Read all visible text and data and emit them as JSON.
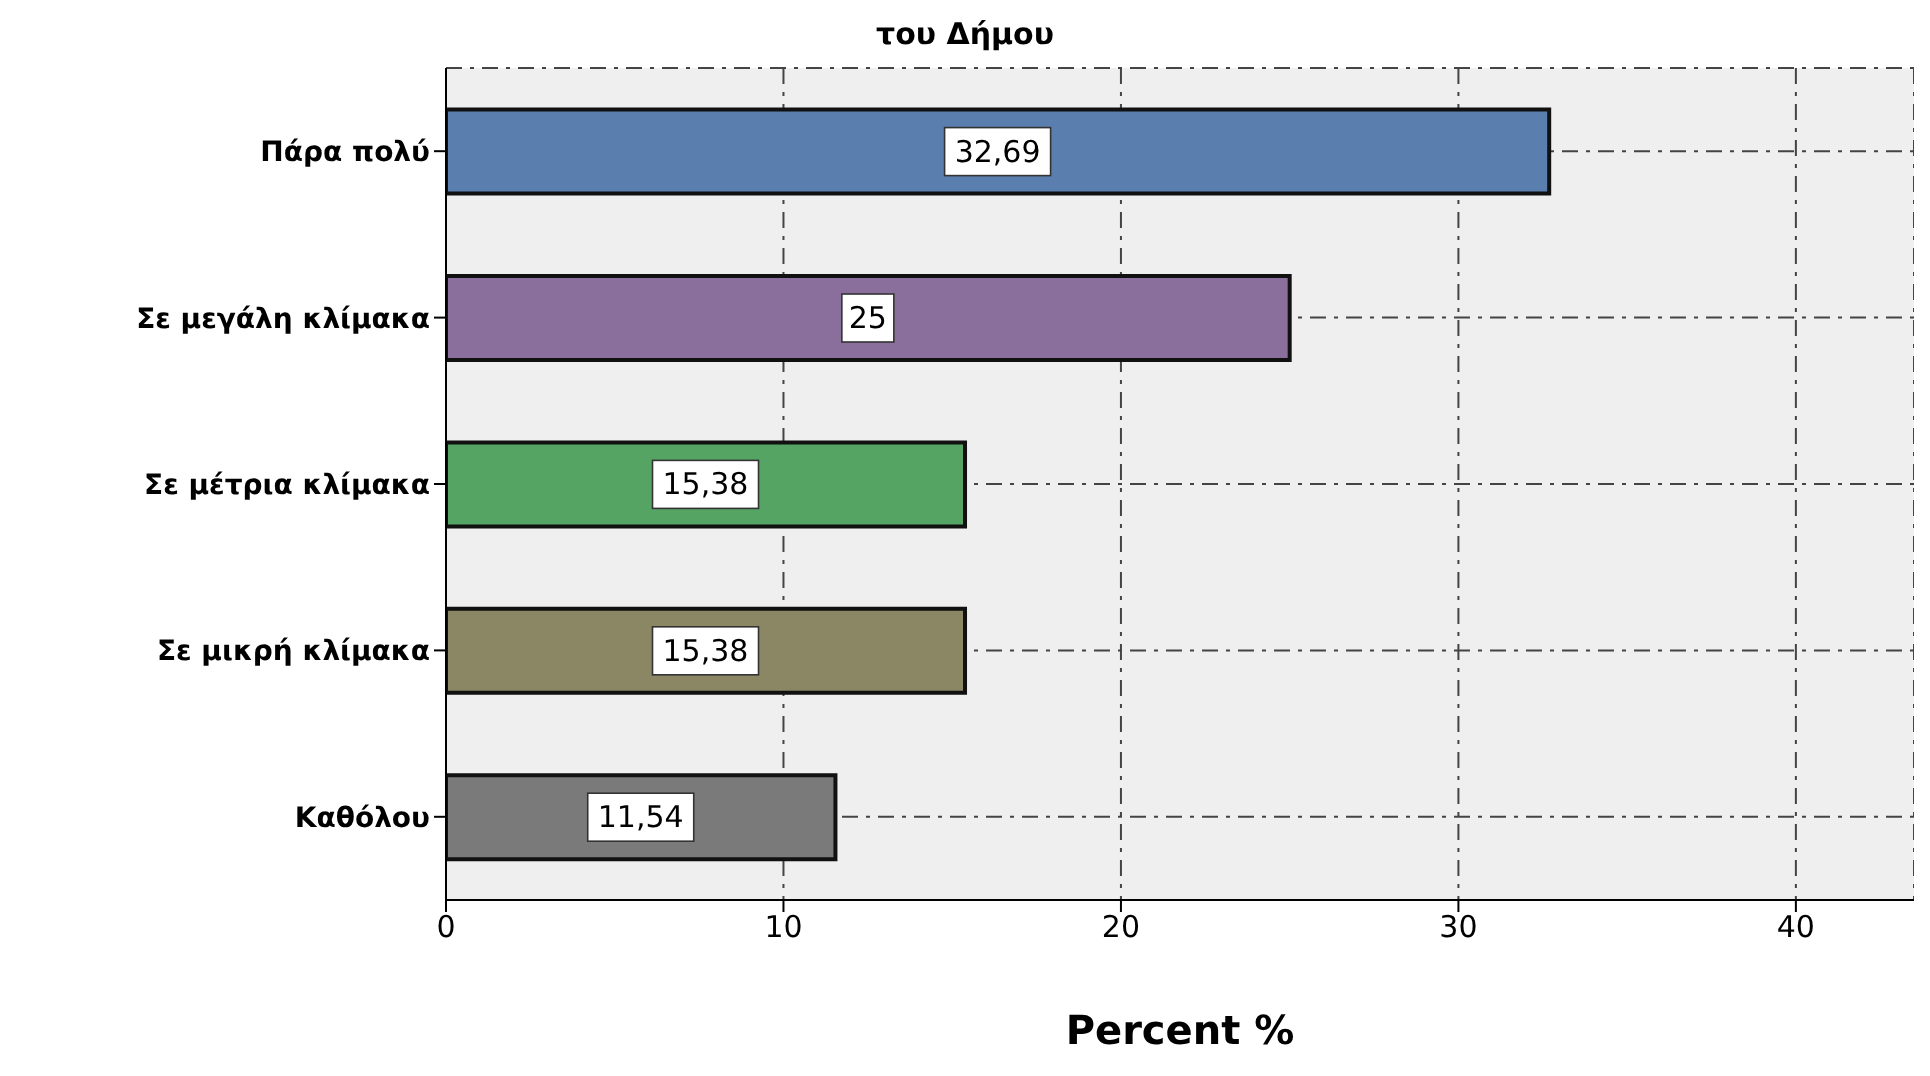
{
  "chart_data": {
    "type": "bar",
    "orientation": "horizontal",
    "title": "του Δήμου",
    "xlabel": "Percent %",
    "categories": [
      "Πάρα πολύ",
      "Σε μεγάλη κλίμακα",
      "Σε μέτρια κλίμακα",
      "Σε μικρή κλίμακα",
      "Καθόλου"
    ],
    "values": [
      32.69,
      25,
      15.38,
      15.38,
      11.54
    ],
    "colors": [
      "#5a7fae",
      "#8a6f9c",
      "#55a463",
      "#8b8663",
      "#7a7a7a"
    ],
    "value_labels": [
      "32,69",
      "25",
      "15,38",
      "15,38",
      "11,54"
    ],
    "xlim": [
      0,
      43.5
    ],
    "xticks": [
      0,
      10,
      20,
      30,
      40
    ],
    "grid": true
  }
}
